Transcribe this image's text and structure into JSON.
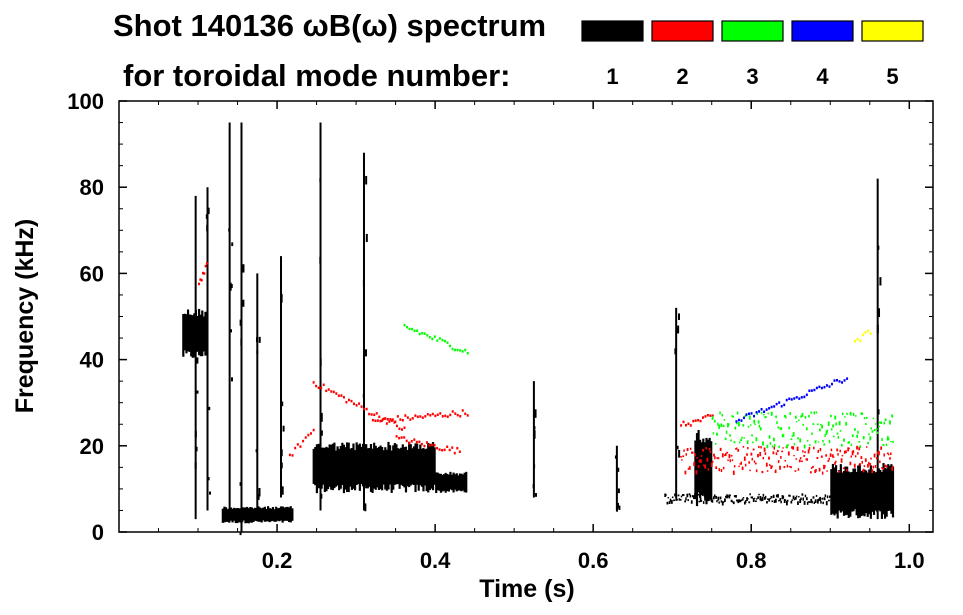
{
  "chart_data": {
    "type": "spectrogram",
    "title_line1": "Shot 140136 ωB(ω) spectrum",
    "title_line2": "for toroidal mode number:",
    "xlabel": "Time (s)",
    "ylabel": "Frequency (kHz)",
    "xlim": [
      0.0,
      1.03
    ],
    "ylim": [
      0,
      100
    ],
    "xticks": [
      0.2,
      0.4,
      0.6,
      0.8,
      1.0
    ],
    "xtick_labels": [
      "0.2",
      "0.4",
      "0.6",
      "0.8",
      "1.0"
    ],
    "yticks": [
      0,
      20,
      40,
      60,
      80,
      100
    ],
    "ytick_labels": [
      "0",
      "20",
      "40",
      "60",
      "80",
      "100"
    ],
    "legend": [
      {
        "label": "1",
        "color": "#000000"
      },
      {
        "label": "2",
        "color": "#ff0000"
      },
      {
        "label": "3",
        "color": "#00ff00"
      },
      {
        "label": "4",
        "color": "#0000ff"
      },
      {
        "label": "5",
        "color": "#ffff00"
      }
    ],
    "features": [
      {
        "mode": "1",
        "kind": "blob",
        "t": [
          0.08,
          0.11
        ],
        "f": [
          40,
          52
        ]
      },
      {
        "mode": "1",
        "kind": "blob",
        "t": [
          0.13,
          0.22
        ],
        "f": [
          2,
          6
        ]
      },
      {
        "mode": "1",
        "kind": "blob",
        "t": [
          0.245,
          0.4
        ],
        "f": [
          9,
          21
        ]
      },
      {
        "mode": "1",
        "kind": "blob",
        "t": [
          0.4,
          0.44
        ],
        "f": [
          9,
          14
        ]
      },
      {
        "mode": "1",
        "kind": "blob",
        "t": [
          0.728,
          0.75
        ],
        "f": [
          6,
          24
        ]
      },
      {
        "mode": "1",
        "kind": "band",
        "t": [
          0.69,
          0.9
        ],
        "f": [
          7,
          9
        ]
      },
      {
        "mode": "1",
        "kind": "blob",
        "t": [
          0.9,
          0.98
        ],
        "f": [
          3,
          16
        ]
      },
      {
        "mode": "1",
        "kind": "vline",
        "t": 0.097,
        "f": [
          3,
          78
        ]
      },
      {
        "mode": "1",
        "kind": "vline",
        "t": 0.112,
        "f": [
          5,
          80
        ]
      },
      {
        "mode": "1",
        "kind": "vline",
        "t": 0.14,
        "f": [
          5,
          95
        ]
      },
      {
        "mode": "1",
        "kind": "vline",
        "t": 0.155,
        "f": [
          0,
          95
        ]
      },
      {
        "mode": "1",
        "kind": "vline",
        "t": 0.175,
        "f": [
          4,
          60
        ]
      },
      {
        "mode": "1",
        "kind": "vline",
        "t": 0.205,
        "f": [
          8,
          64
        ]
      },
      {
        "mode": "1",
        "kind": "vline",
        "t": 0.255,
        "f": [
          5,
          95
        ]
      },
      {
        "mode": "1",
        "kind": "vline",
        "t": 0.31,
        "f": [
          5,
          88
        ]
      },
      {
        "mode": "1",
        "kind": "vline",
        "t": 0.525,
        "f": [
          8,
          35
        ]
      },
      {
        "mode": "1",
        "kind": "vline",
        "t": 0.63,
        "f": [
          5,
          20
        ]
      },
      {
        "mode": "1",
        "kind": "vline",
        "t": 0.705,
        "f": [
          8,
          52
        ]
      },
      {
        "mode": "1",
        "kind": "vline",
        "t": 0.96,
        "f": [
          3,
          82
        ]
      },
      {
        "mode": "2",
        "kind": "curve",
        "t": [
          0.1,
          0.11
        ],
        "f": [
          58,
          62
        ]
      },
      {
        "mode": "2",
        "kind": "curve",
        "t": [
          0.215,
          0.245
        ],
        "f": [
          18,
          24
        ]
      },
      {
        "mode": "2",
        "kind": "curve",
        "t": [
          0.245,
          0.36
        ],
        "f": [
          35,
          24
        ]
      },
      {
        "mode": "2",
        "kind": "curve",
        "t": [
          0.32,
          0.44
        ],
        "f": [
          26,
          28
        ]
      },
      {
        "mode": "2",
        "kind": "curve",
        "t": [
          0.35,
          0.43
        ],
        "f": [
          22,
          19
        ]
      },
      {
        "mode": "2",
        "kind": "band",
        "t": [
          0.71,
          0.98
        ],
        "f": [
          14,
          20
        ]
      },
      {
        "mode": "2",
        "kind": "curve",
        "t": [
          0.71,
          0.75
        ],
        "f": [
          25,
          27
        ]
      },
      {
        "mode": "3",
        "kind": "curve",
        "t": [
          0.36,
          0.44
        ],
        "f": [
          48,
          42
        ]
      },
      {
        "mode": "3",
        "kind": "band",
        "t": [
          0.75,
          0.98
        ],
        "f": [
          20,
          28
        ]
      },
      {
        "mode": "4",
        "kind": "curve",
        "t": [
          0.78,
          0.92
        ],
        "f": [
          26,
          36
        ]
      },
      {
        "mode": "5",
        "kind": "curve",
        "t": [
          0.93,
          0.95
        ],
        "f": [
          44,
          47
        ]
      }
    ]
  }
}
